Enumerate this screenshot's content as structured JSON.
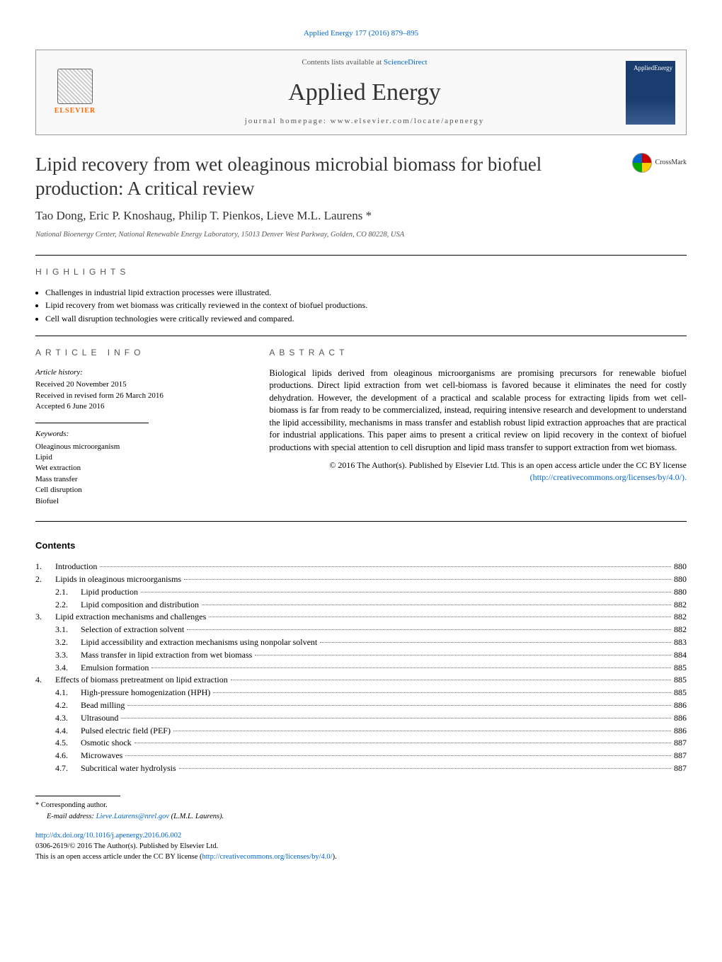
{
  "citation": "Applied Energy 177 (2016) 879–895",
  "banner": {
    "contents_line": "Contents lists available at ",
    "contents_link": "ScienceDirect",
    "journal": "Applied Energy",
    "homepage_label": "journal homepage: ",
    "homepage_url": "www.elsevier.com/locate/apenergy",
    "publisher": "ELSEVIER",
    "cover_text": "AppliedEnergy"
  },
  "crossmark": "CrossMark",
  "title": "Lipid recovery from wet oleaginous microbial biomass for biofuel production: A critical review",
  "authors": "Tao Dong, Eric P. Knoshaug, Philip T. Pienkos, Lieve M.L. Laurens *",
  "affiliation": "National Bioenergy Center, National Renewable Energy Laboratory, 15013 Denver West Parkway, Golden, CO 80228, USA",
  "highlights": {
    "header": "HIGHLIGHTS",
    "items": [
      "Challenges in industrial lipid extraction processes were illustrated.",
      "Lipid recovery from wet biomass was critically reviewed in the context of biofuel productions.",
      "Cell wall disruption technologies were critically reviewed and compared."
    ]
  },
  "article_info": {
    "header": "ARTICLE INFO",
    "history_label": "Article history:",
    "received": "Received 20 November 2015",
    "revised": "Received in revised form 26 March 2016",
    "accepted": "Accepted 6 June 2016",
    "keywords_label": "Keywords:",
    "keywords": [
      "Oleaginous microorganism",
      "Lipid",
      "Wet extraction",
      "Mass transfer",
      "Cell disruption",
      "Biofuel"
    ]
  },
  "abstract": {
    "header": "ABSTRACT",
    "text": "Biological lipids derived from oleaginous microorganisms are promising precursors for renewable biofuel productions. Direct lipid extraction from wet cell-biomass is favored because it eliminates the need for costly dehydration. However, the development of a practical and scalable process for extracting lipids from wet cell-biomass is far from ready to be commercialized, instead, requiring intensive research and development to understand the lipid accessibility, mechanisms in mass transfer and establish robust lipid extraction approaches that are practical for industrial applications. This paper aims to present a critical review on lipid recovery in the context of biofuel productions with special attention to cell disruption and lipid mass transfer to support extraction from wet biomass.",
    "license": "© 2016 The Author(s). Published by Elsevier Ltd. This is an open access article under the CC BY license",
    "license_url": "(http://creativecommons.org/licenses/by/4.0/)."
  },
  "contents": {
    "header": "Contents",
    "entries": [
      {
        "num": "1.",
        "title": "Introduction",
        "page": "880",
        "level": 0
      },
      {
        "num": "2.",
        "title": "Lipids in oleaginous microorganisms",
        "page": "880",
        "level": 0
      },
      {
        "num": "2.1.",
        "title": "Lipid production",
        "page": "880",
        "level": 1
      },
      {
        "num": "2.2.",
        "title": "Lipid composition and distribution",
        "page": "882",
        "level": 1
      },
      {
        "num": "3.",
        "title": "Lipid extraction mechanisms and challenges",
        "page": "882",
        "level": 0
      },
      {
        "num": "3.1.",
        "title": "Selection of extraction solvent",
        "page": "882",
        "level": 1
      },
      {
        "num": "3.2.",
        "title": "Lipid accessibility and extraction mechanisms using nonpolar solvent",
        "page": "883",
        "level": 1
      },
      {
        "num": "3.3.",
        "title": "Mass transfer in lipid extraction from wet biomass",
        "page": "884",
        "level": 1
      },
      {
        "num": "3.4.",
        "title": "Emulsion formation",
        "page": "885",
        "level": 1
      },
      {
        "num": "4.",
        "title": "Effects of biomass pretreatment on lipid extraction",
        "page": "885",
        "level": 0
      },
      {
        "num": "4.1.",
        "title": "High-pressure homogenization (HPH)",
        "page": "885",
        "level": 1
      },
      {
        "num": "4.2.",
        "title": "Bead milling",
        "page": "886",
        "level": 1
      },
      {
        "num": "4.3.",
        "title": "Ultrasound",
        "page": "886",
        "level": 1
      },
      {
        "num": "4.4.",
        "title": "Pulsed electric field (PEF)",
        "page": "886",
        "level": 1
      },
      {
        "num": "4.5.",
        "title": "Osmotic shock",
        "page": "887",
        "level": 1
      },
      {
        "num": "4.6.",
        "title": "Microwaves",
        "page": "887",
        "level": 1
      },
      {
        "num": "4.7.",
        "title": "Subcritical water hydrolysis",
        "page": "887",
        "level": 1
      }
    ]
  },
  "footnotes": {
    "corr": "* Corresponding author.",
    "email_label": "E-mail address: ",
    "email": "Lieve.Laurens@nrel.gov",
    "email_suffix": " (L.M.L. Laurens).",
    "doi": "http://dx.doi.org/10.1016/j.apenergy.2016.06.002",
    "issn_line": "0306-2619/© 2016 The Author(s). Published by Elsevier Ltd.",
    "oa_line": "This is an open access article under the CC BY license (",
    "oa_url": "http://creativecommons.org/licenses/by/4.0/",
    "oa_suffix": ")."
  },
  "colors": {
    "link": "#0066cc",
    "elsevier_orange": "#ff6600",
    "cover_bg": "#1a3c6e",
    "text": "#000000",
    "muted": "#555555",
    "rule": "#000000"
  }
}
